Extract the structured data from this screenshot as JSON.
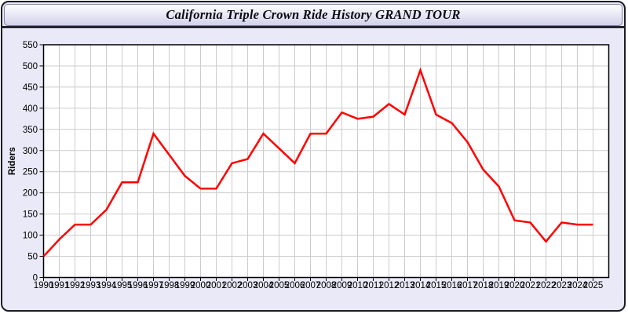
{
  "window": {
    "title": "California Triple Crown Ride History GRAND TOUR"
  },
  "chart_data": {
    "type": "line",
    "title": "California Triple Crown Ride History GRAND TOUR",
    "xlabel": "",
    "ylabel": "Riders",
    "ylim": [
      0,
      550
    ],
    "ytick_step": 50,
    "grid": true,
    "legend_position": "none",
    "x": [
      1990,
      1991,
      1992,
      1993,
      1994,
      1995,
      1996,
      1997,
      1998,
      1999,
      2000,
      2001,
      2002,
      2003,
      2004,
      2005,
      2006,
      2007,
      2008,
      2009,
      2010,
      2011,
      2012,
      2013,
      2014,
      2015,
      2016,
      2017,
      2018,
      2019,
      2020,
      2021,
      2022,
      2023,
      2024,
      2025
    ],
    "series": [
      {
        "name": "Riders",
        "values": [
          50,
          90,
          125,
          125,
          160,
          225,
          225,
          340,
          290,
          240,
          210,
          210,
          270,
          280,
          340,
          305,
          270,
          340,
          340,
          390,
          375,
          380,
          410,
          385,
          490,
          385,
          365,
          320,
          255,
          215,
          135,
          130,
          85,
          130,
          125,
          125
        ]
      }
    ],
    "colors": {
      "line": "#ff0000",
      "grid": "#cccccc",
      "plot_background": "#ffffff",
      "page_background": "#e9e9f8",
      "axis": "#000000",
      "tick_text": "#000000"
    }
  }
}
